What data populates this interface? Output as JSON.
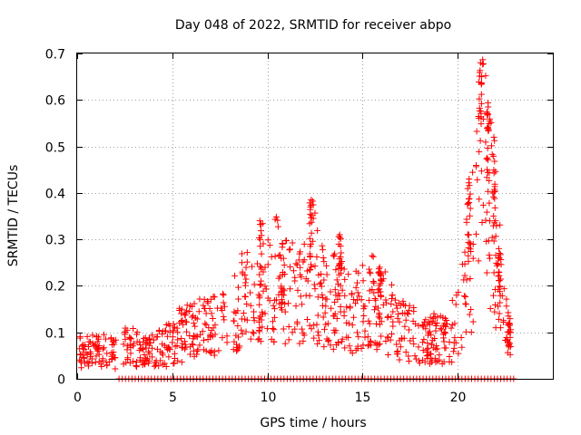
{
  "chart_data": {
    "type": "scatter",
    "title": "Day 048 of 2022, SRMTID for receiver abpo",
    "xlabel": "GPS time / hours",
    "ylabel": "SRMTID / TECUs",
    "xlim": [
      0,
      25
    ],
    "ylim": [
      0,
      0.7
    ],
    "grid": true,
    "marker": "+",
    "color": "#ff0000",
    "x_ticks": [
      {
        "value": 0,
        "label": "0"
      },
      {
        "value": 5,
        "label": "5"
      },
      {
        "value": 10,
        "label": "10"
      },
      {
        "value": 15,
        "label": "15"
      },
      {
        "value": 20,
        "label": "20"
      }
    ],
    "y_ticks": [
      {
        "value": 0,
        "label": "0"
      },
      {
        "value": 0.1,
        "label": "0.1"
      },
      {
        "value": 0.2,
        "label": "0.2"
      },
      {
        "value": 0.3,
        "label": "0.3"
      },
      {
        "value": 0.4,
        "label": "0.4"
      },
      {
        "value": 0.5,
        "label": "0.5"
      },
      {
        "value": 0.6,
        "label": "0.6"
      },
      {
        "value": 0.7,
        "label": "0.7"
      }
    ],
    "profile": [
      [
        0.0,
        0.06
      ],
      [
        0.5,
        0.06
      ],
      [
        1.0,
        0.06
      ],
      [
        1.5,
        0.06
      ],
      [
        2.0,
        0.06
      ],
      [
        2.5,
        0.07
      ],
      [
        3.0,
        0.07
      ],
      [
        3.5,
        0.06
      ],
      [
        4.0,
        0.06
      ],
      [
        4.5,
        0.07
      ],
      [
        5.0,
        0.08
      ],
      [
        5.5,
        0.1
      ],
      [
        6.0,
        0.11
      ],
      [
        6.5,
        0.11
      ],
      [
        7.0,
        0.11
      ],
      [
        7.5,
        0.12
      ],
      [
        8.0,
        0.14
      ],
      [
        8.5,
        0.16
      ],
      [
        9.0,
        0.19
      ],
      [
        9.5,
        0.22
      ],
      [
        10.0,
        0.22
      ],
      [
        10.5,
        0.22
      ],
      [
        11.0,
        0.2
      ],
      [
        11.5,
        0.18
      ],
      [
        12.0,
        0.2
      ],
      [
        12.3,
        0.25
      ],
      [
        12.7,
        0.2
      ],
      [
        13.0,
        0.17
      ],
      [
        13.5,
        0.18
      ],
      [
        14.0,
        0.17
      ],
      [
        14.5,
        0.15
      ],
      [
        15.0,
        0.16
      ],
      [
        15.5,
        0.17
      ],
      [
        16.0,
        0.16
      ],
      [
        16.5,
        0.13
      ],
      [
        17.0,
        0.11
      ],
      [
        17.5,
        0.1
      ],
      [
        18.0,
        0.09
      ],
      [
        18.5,
        0.09
      ],
      [
        19.0,
        0.09
      ],
      [
        19.5,
        0.08
      ],
      [
        20.0,
        0.14
      ],
      [
        20.5,
        0.22
      ],
      [
        20.8,
        0.3
      ],
      [
        21.0,
        0.4
      ],
      [
        21.2,
        0.52
      ],
      [
        21.5,
        0.45
      ],
      [
        21.8,
        0.36
      ],
      [
        22.0,
        0.3
      ],
      [
        22.3,
        0.18
      ],
      [
        22.6,
        0.1
      ],
      [
        22.8,
        0.08
      ]
    ],
    "spikes": [
      {
        "x": 9.6,
        "lo": 0.1,
        "hi": 0.34
      },
      {
        "x": 10.8,
        "lo": 0.14,
        "hi": 0.29
      },
      {
        "x": 12.3,
        "lo": 0.22,
        "hi": 0.385
      },
      {
        "x": 13.8,
        "lo": 0.15,
        "hi": 0.31
      },
      {
        "x": 15.9,
        "lo": 0.17,
        "hi": 0.24
      },
      {
        "x": 20.6,
        "lo": 0.26,
        "hi": 0.43
      },
      {
        "x": 21.2,
        "lo": 0.54,
        "hi": 0.68
      },
      {
        "x": 21.6,
        "lo": 0.42,
        "hi": 0.585
      },
      {
        "x": 21.9,
        "lo": 0.3,
        "hi": 0.52
      },
      {
        "x": 22.2,
        "lo": 0.15,
        "hi": 0.27
      },
      {
        "x": 22.7,
        "lo": 0.05,
        "hi": 0.12
      }
    ],
    "gaps": [
      [
        2.1,
        2.4
      ],
      [
        7.9,
        8.1
      ]
    ],
    "zero_baseline": {
      "from": 2.2,
      "to": 23.0,
      "value": 0
    },
    "scatter_density": 8
  }
}
